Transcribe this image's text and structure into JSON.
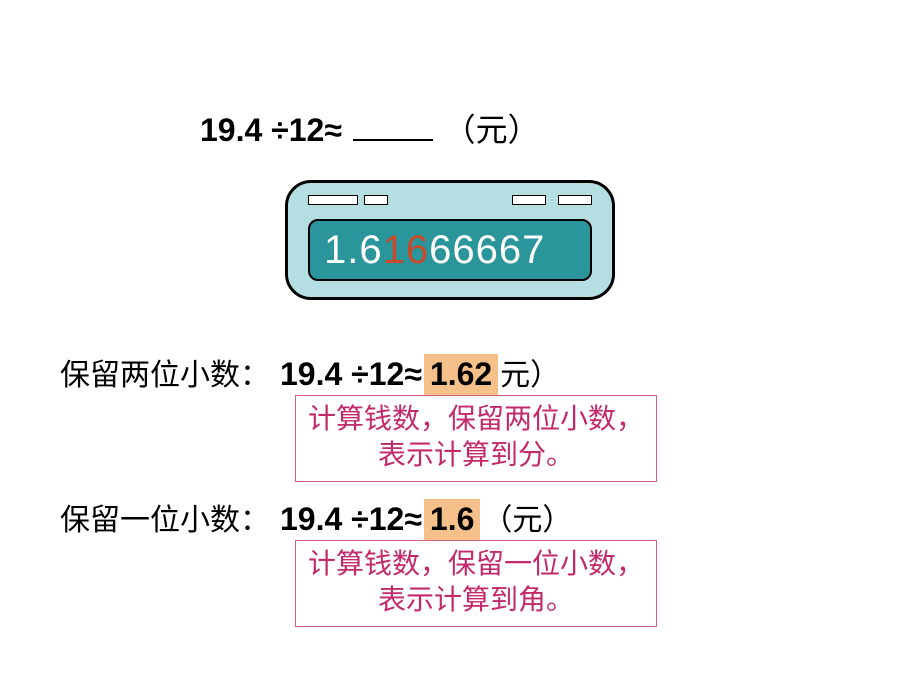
{
  "colors": {
    "background": "#ffffff",
    "text": "#000000",
    "calc_body": "#b5dee2",
    "calc_display": "#2b959c",
    "calc_digit": "#ffffff",
    "calc_highlight": "#c94a2b",
    "answer_highlight_bg": "#f6c08a",
    "note_border": "#d6607f",
    "note_text": "#c32a6b"
  },
  "top_equation": {
    "expression": "19.4 ÷12≈",
    "unit": "（元）"
  },
  "calculator": {
    "display_prefix": "1.6",
    "display_highlight": "16",
    "display_suffix": "66667"
  },
  "row1": {
    "label": "保留两位小数：",
    "expression": "19.4 ÷12≈",
    "answer": "1.62",
    "unit": " 元）"
  },
  "note1": {
    "line1": "计算钱数，保留两位小数，",
    "line2": "表示计算到分。"
  },
  "row2": {
    "label": "保留一位小数：",
    "expression": "19.4 ÷12≈",
    "answer": "1.6",
    "unit": "（元）"
  },
  "note2": {
    "line1": "计算钱数，保留一位小数，",
    "line2": "表示计算到角。"
  }
}
